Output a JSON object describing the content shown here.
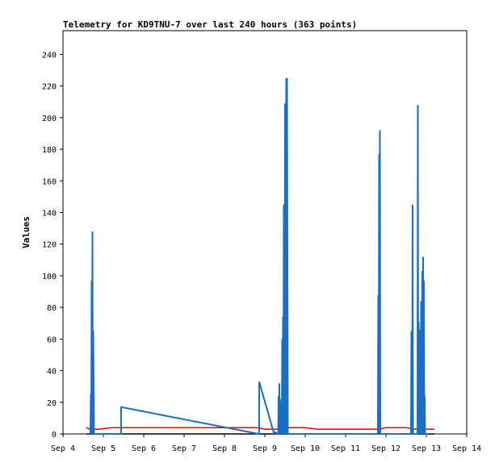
{
  "chart_data": {
    "type": "line",
    "title": "Telemetry for KD9TNU-7 over last 240 hours (363 points)",
    "xlabel": "",
    "ylabel": "Values",
    "xlim": [
      4.0,
      14.0
    ],
    "ylim": [
      0,
      255
    ],
    "x_ticks": [
      4,
      5,
      6,
      7,
      8,
      9,
      10,
      11,
      12,
      13,
      14
    ],
    "x_tick_labels": [
      "Sep 4",
      "Sep 5",
      "Sep 6",
      "Sep 7",
      "Sep 8",
      "Sep 9",
      "Sep 10",
      "Sep 11",
      "Sep 12",
      "Sep 13",
      "Sep 14"
    ],
    "y_ticks": [
      0,
      20,
      40,
      60,
      80,
      100,
      120,
      140,
      160,
      180,
      200,
      220,
      240
    ],
    "grid": false,
    "series": [
      {
        "color": "#e00000",
        "x": [
          4.58,
          4.66,
          4.72,
          4.9,
          5.2,
          5.5,
          6.0,
          7.0,
          8.0,
          8.8,
          9.0,
          9.4,
          9.6,
          10.0,
          10.3,
          10.6,
          11.0,
          11.5,
          11.85,
          12.0,
          12.5,
          12.7,
          13.1,
          13.2
        ],
        "y": [
          4,
          3,
          3,
          3,
          4,
          4,
          4,
          4,
          4,
          4,
          3,
          3,
          4,
          4,
          3,
          3,
          3,
          3,
          3,
          4,
          4,
          3,
          3,
          3
        ]
      },
      {
        "color": "#000000",
        "x": [
          4.58,
          4.72,
          13.2
        ],
        "y": [
          0,
          0,
          0
        ]
      },
      {
        "color": "#1a6fc4",
        "x": [
          4.68,
          4.69,
          4.7,
          4.71,
          4.72,
          4.73,
          4.74,
          4.75,
          4.77,
          5.44,
          5.44,
          8.85,
          8.86,
          8.86,
          8.87,
          9.23,
          9.25,
          9.33,
          9.34,
          9.35,
          9.36,
          9.37,
          9.38,
          9.39,
          9.4,
          9.42,
          9.43,
          9.44,
          9.45,
          9.46,
          9.47,
          9.48,
          9.49,
          9.5,
          9.51,
          9.53,
          9.54,
          9.55,
          9.57,
          9.58,
          9.6,
          9.61,
          9.62,
          9.63,
          9.64,
          9.65,
          9.66,
          9.67,
          11.8,
          11.81,
          11.82,
          11.83,
          11.84,
          11.85,
          11.86,
          12.62,
          12.63,
          12.65,
          12.66,
          12.67,
          12.68,
          12.7,
          12.72,
          12.78,
          12.79,
          12.8,
          12.81,
          12.82,
          12.83,
          12.84,
          12.85,
          12.86,
          12.87,
          12.88,
          12.9,
          12.91,
          12.92,
          12.93,
          12.94,
          12.95,
          12.96,
          12.97,
          12.98,
          12.99,
          13.0,
          13.01,
          13.02,
          13.03,
          13.04,
          13.05
        ],
        "y": [
          0,
          25,
          0,
          97,
          0,
          128,
          0,
          65,
          0,
          0,
          17,
          0,
          0,
          33,
          32,
          0,
          1,
          0,
          24,
          0,
          32,
          0,
          22,
          0,
          20,
          0,
          60,
          0,
          74,
          0,
          145,
          0,
          0,
          209,
          0,
          225,
          0,
          225,
          0,
          0,
          0,
          0,
          0,
          0,
          0,
          0,
          0,
          0,
          0,
          88,
          0,
          177,
          0,
          192,
          0,
          0,
          65,
          0,
          145,
          0,
          0,
          0,
          0,
          0,
          208,
          0,
          71,
          0,
          66,
          0,
          47,
          0,
          84,
          0,
          103,
          0,
          112,
          0,
          97,
          0,
          24,
          0,
          0,
          0,
          0,
          0,
          0,
          0,
          0,
          0
        ]
      }
    ]
  }
}
